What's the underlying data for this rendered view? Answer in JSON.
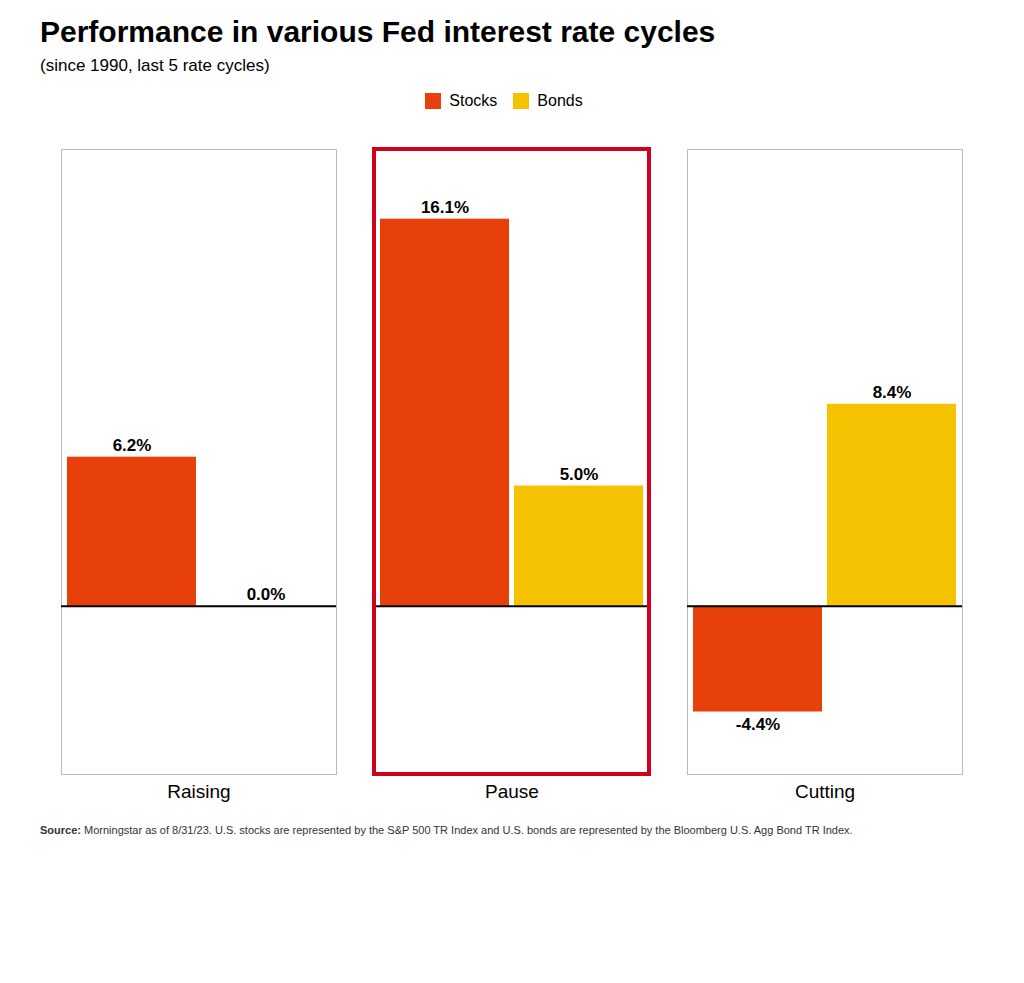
{
  "chart_data": {
    "type": "bar",
    "title": "Performance in various Fed interest rate cycles",
    "subtitle": "(since 1990, last 5 rate cycles)",
    "source": "Source: Morningstar as of 8/31/23. U.S. stocks are represented by the S&P 500 TR Index and U.S. bonds are represented by the Bloomberg U.S. Agg Bond TR Index.",
    "categories": [
      "Raising",
      "Pause",
      "Cutting"
    ],
    "series": [
      {
        "name": "Stocks",
        "color": "#E8400A",
        "values": [
          6.2,
          16.1,
          -4.4
        ],
        "value_labels": [
          "6.2%",
          "16.1%",
          "-4.4%"
        ]
      },
      {
        "name": "Bonds",
        "color": "#F5C200",
        "values": [
          0.0,
          5.0,
          8.4
        ],
        "value_labels": [
          "0.0%",
          "5.0%",
          "8.4%"
        ]
      }
    ],
    "ylim": [
      -7,
      19
    ],
    "tick_labels": "x",
    "data_labels": true,
    "legend": "top",
    "grid": false,
    "annotations": [
      {
        "type": "rect",
        "x": "Pause",
        "color": "#D0021B"
      }
    ]
  }
}
